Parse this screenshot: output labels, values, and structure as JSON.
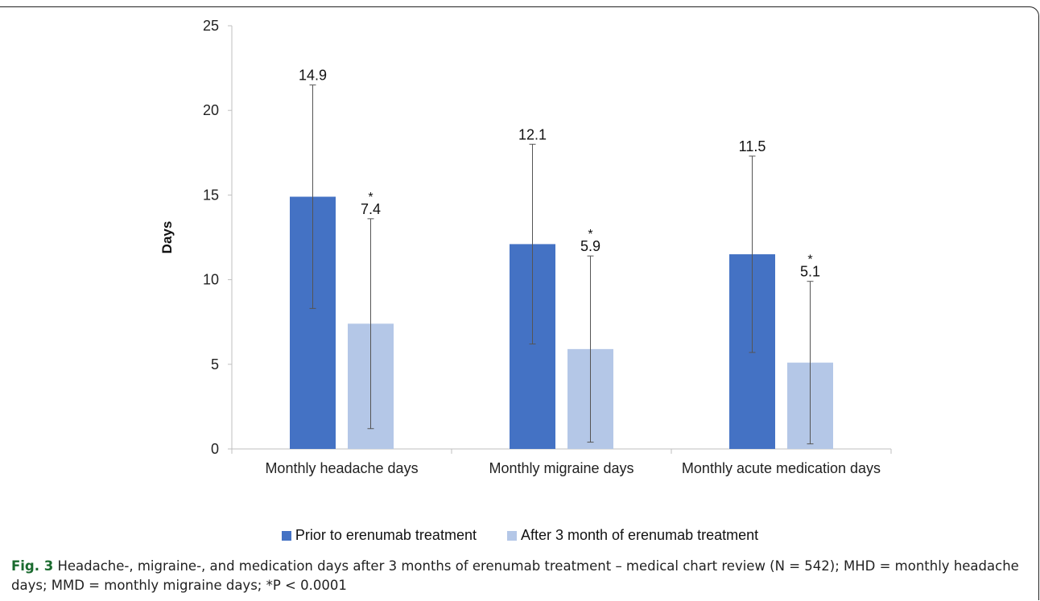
{
  "chart_data": {
    "type": "bar",
    "categories": [
      "Monthly headache days",
      "Monthly migraine days",
      "Monthly acute medication days"
    ],
    "series": [
      {
        "name": "Prior to erenumab treatment",
        "color": "#4472c4",
        "values": [
          14.9,
          12.1,
          11.5
        ],
        "error_low": [
          8.3,
          6.2,
          5.7
        ],
        "error_high": [
          21.5,
          18.0,
          17.3
        ],
        "labels": [
          "14.9",
          "12.1",
          "11.5"
        ]
      },
      {
        "name": "After 3 month of erenumab treatment",
        "color": "#b4c7e7",
        "values": [
          7.4,
          5.9,
          5.1
        ],
        "error_low": [
          1.2,
          0.4,
          0.3
        ],
        "error_high": [
          13.6,
          11.4,
          9.9
        ],
        "labels": [
          "7.4",
          "5.9",
          "5.1"
        ],
        "significance": "*"
      }
    ],
    "ylabel": "Days",
    "ylim": [
      0,
      25
    ],
    "yticks": [
      0,
      5,
      10,
      15,
      20,
      25
    ],
    "grid": false,
    "legend_position": "bottom"
  },
  "caption": {
    "fig_label": "Fig. 3",
    "text": " Headache-, migraine-, and medication days after 3 months of erenumab treatment – medical chart review (N = 542); MHD = monthly headache days; MMD = monthly migraine days; *P < 0.0001"
  }
}
